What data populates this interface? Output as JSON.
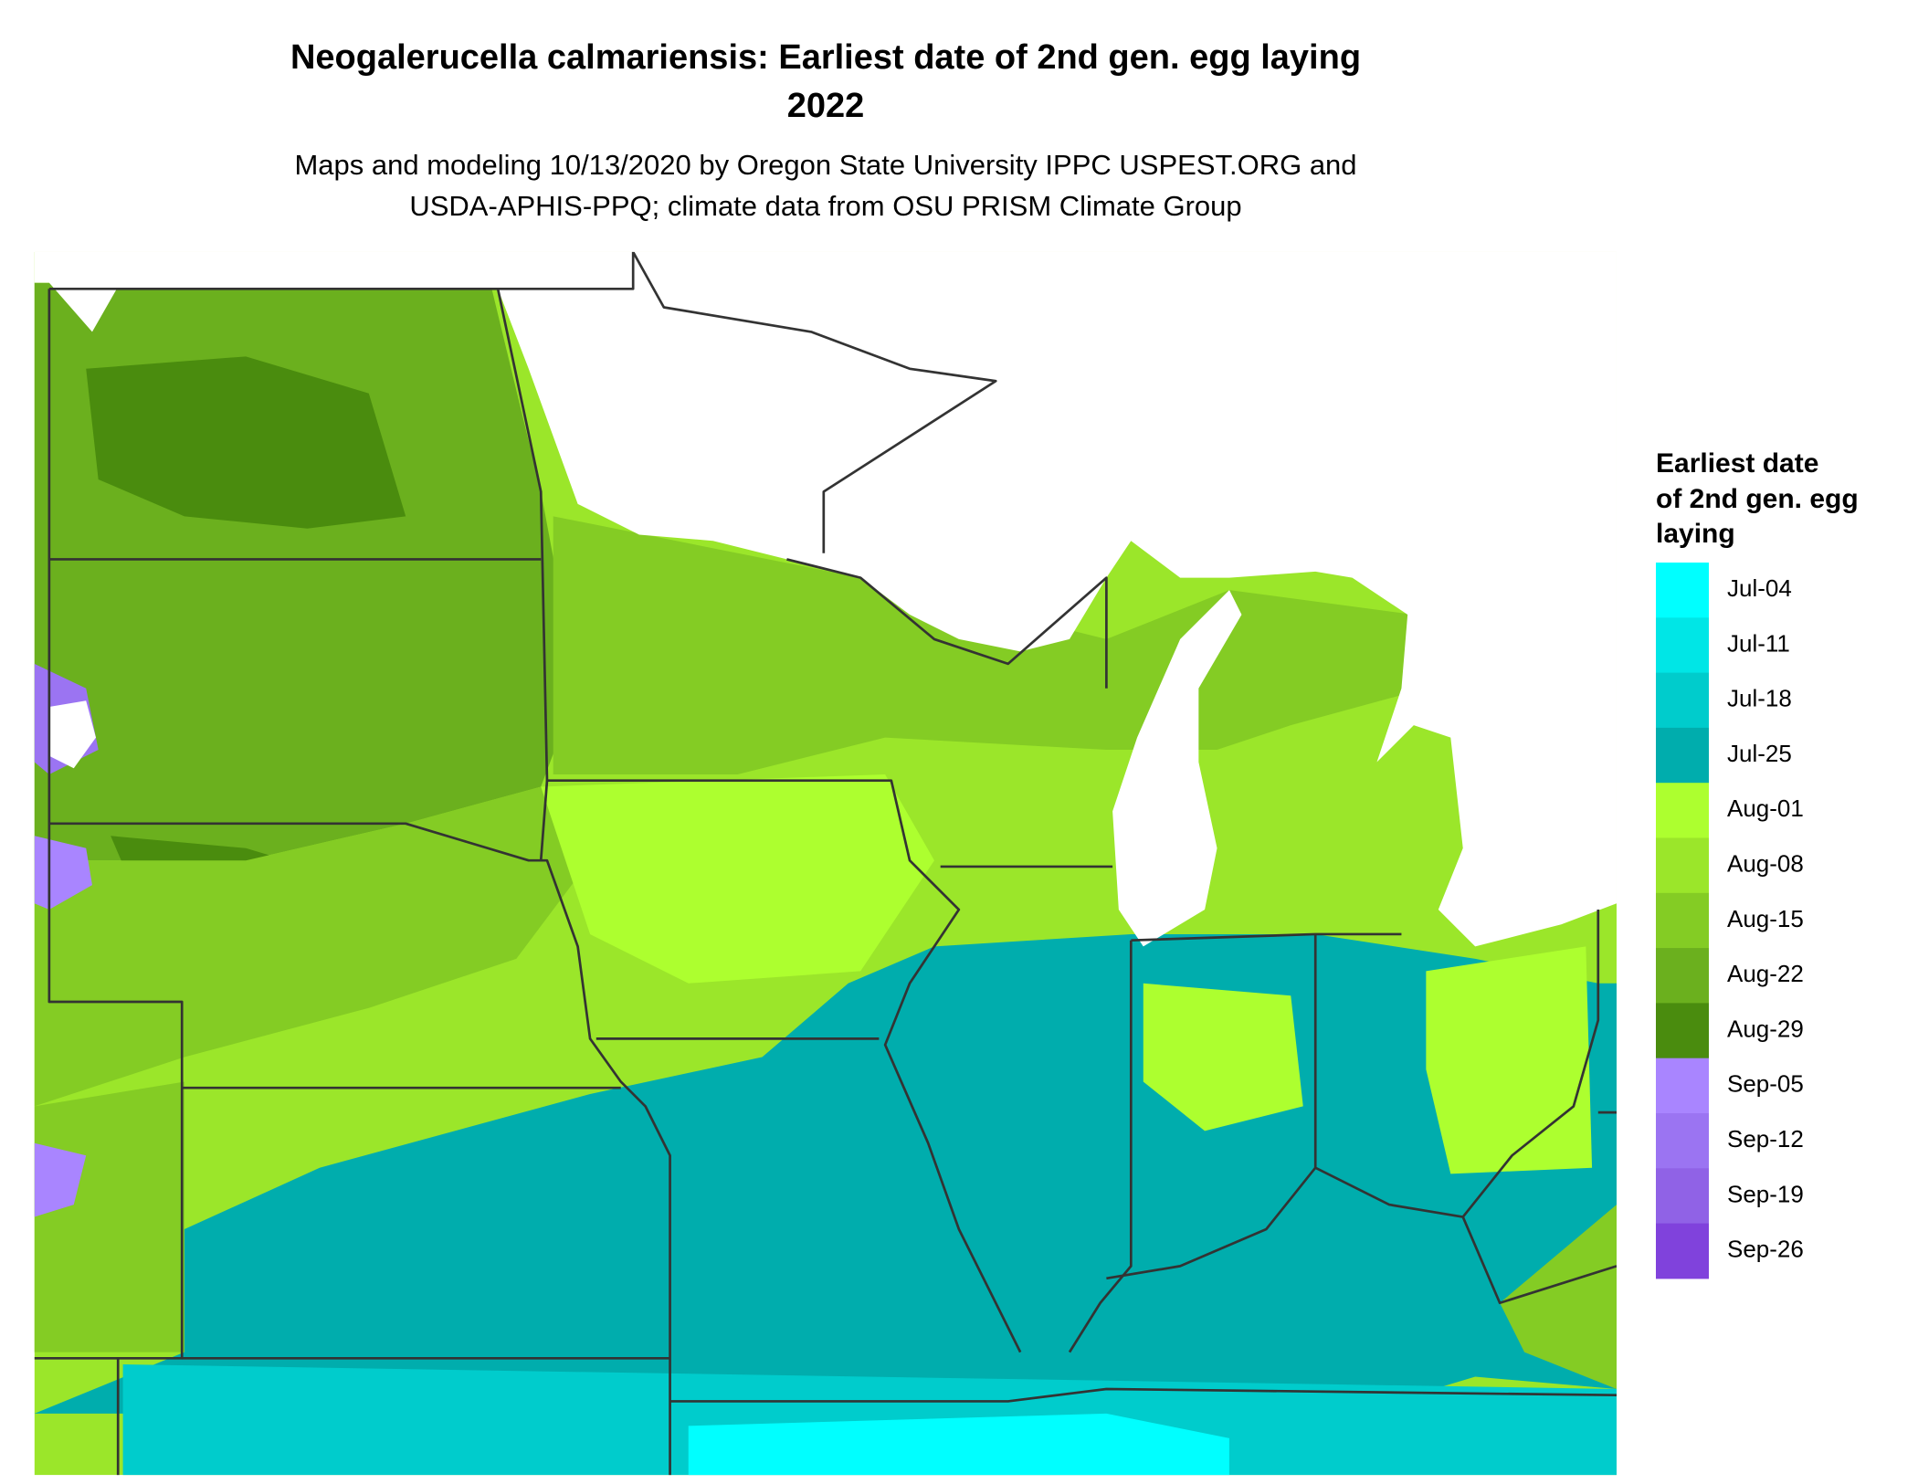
{
  "header": {
    "title": "Neogalerucella calmariensis: Earliest date of 2nd gen. egg laying",
    "year": "2022",
    "subtitle_line1": "Maps and modeling 10/13/2020 by Oregon State University IPPC USPEST.ORG and",
    "subtitle_line2": "USDA-APHIS-PPQ; climate data from OSU PRISM Climate Group"
  },
  "legend": {
    "title_line1": "Earliest date",
    "title_line2": "of 2nd gen. egg",
    "title_line3": "laying",
    "items": [
      {
        "label": "Jul-04",
        "color": "#00ffff"
      },
      {
        "label": "Jul-11",
        "color": "#00e6e6"
      },
      {
        "label": "Jul-18",
        "color": "#00cccc"
      },
      {
        "label": "Jul-25",
        "color": "#00adad"
      },
      {
        "label": "Aug-01",
        "color": "#adff2f"
      },
      {
        "label": "Aug-08",
        "color": "#9be62a"
      },
      {
        "label": "Aug-15",
        "color": "#84cc24"
      },
      {
        "label": "Aug-22",
        "color": "#6bb01e"
      },
      {
        "label": "Aug-29",
        "color": "#4a8c0e"
      },
      {
        "label": "Sep-05",
        "color": "#a985ff"
      },
      {
        "label": "Sep-12",
        "color": "#9b74f2"
      },
      {
        "label": "Sep-19",
        "color": "#9062e6"
      },
      {
        "label": "Sep-26",
        "color": "#8042dc"
      }
    ]
  }
}
